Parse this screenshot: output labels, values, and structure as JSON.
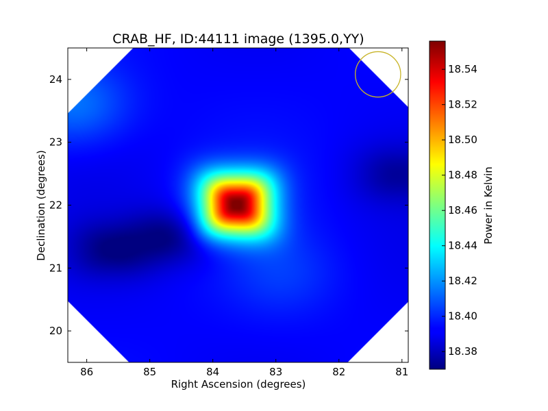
{
  "chart_data": {
    "type": "heatmap",
    "title": "CRAB_HF, ID:44111 image (1395.0,YY)",
    "xlabel": "Right Ascension (degrees)",
    "ylabel": "Declination (degrees)",
    "xlim": [
      86.3,
      80.9
    ],
    "ylim": [
      19.5,
      24.5
    ],
    "x_ticks": [
      86,
      85,
      84,
      83,
      82,
      81
    ],
    "y_ticks": [
      20,
      21,
      22,
      23,
      24
    ],
    "x_tick_labels": [
      "86",
      "85",
      "84",
      "83",
      "82",
      "81"
    ],
    "y_tick_labels": [
      "20",
      "21",
      "22",
      "23",
      "24"
    ],
    "colorbar": {
      "label": "Power in Kelvin",
      "range": [
        18.37,
        18.556
      ],
      "ticks": [
        18.38,
        18.4,
        18.42,
        18.44,
        18.46,
        18.48,
        18.5,
        18.52,
        18.54
      ],
      "tick_labels": [
        "18.38",
        "18.40",
        "18.42",
        "18.44",
        "18.46",
        "18.48",
        "18.50",
        "18.52",
        "18.54"
      ],
      "colormap": "jet"
    },
    "background_level": 18.393,
    "features": [
      {
        "kind": "peak",
        "ra": 83.63,
        "dec": 22.01,
        "value": 18.555
      },
      {
        "kind": "minimum",
        "ra": 84.6,
        "dec": 21.5,
        "value": 18.371
      },
      {
        "kind": "minimum",
        "ra": 85.6,
        "dec": 21.3,
        "value": 18.373
      },
      {
        "kind": "minimum",
        "ra": 81.1,
        "dec": 22.5,
        "value": 18.378
      },
      {
        "kind": "raised",
        "ra": 86.2,
        "dec": 23.6,
        "value": 18.415
      },
      {
        "kind": "raised",
        "ra": 82.9,
        "dec": 20.9,
        "value": 18.402
      }
    ],
    "beam_circle": {
      "ra": 81.38,
      "dec": 24.08,
      "radius_deg": 0.36,
      "color": "#c8b428"
    },
    "mask_shape": "octagon"
  }
}
